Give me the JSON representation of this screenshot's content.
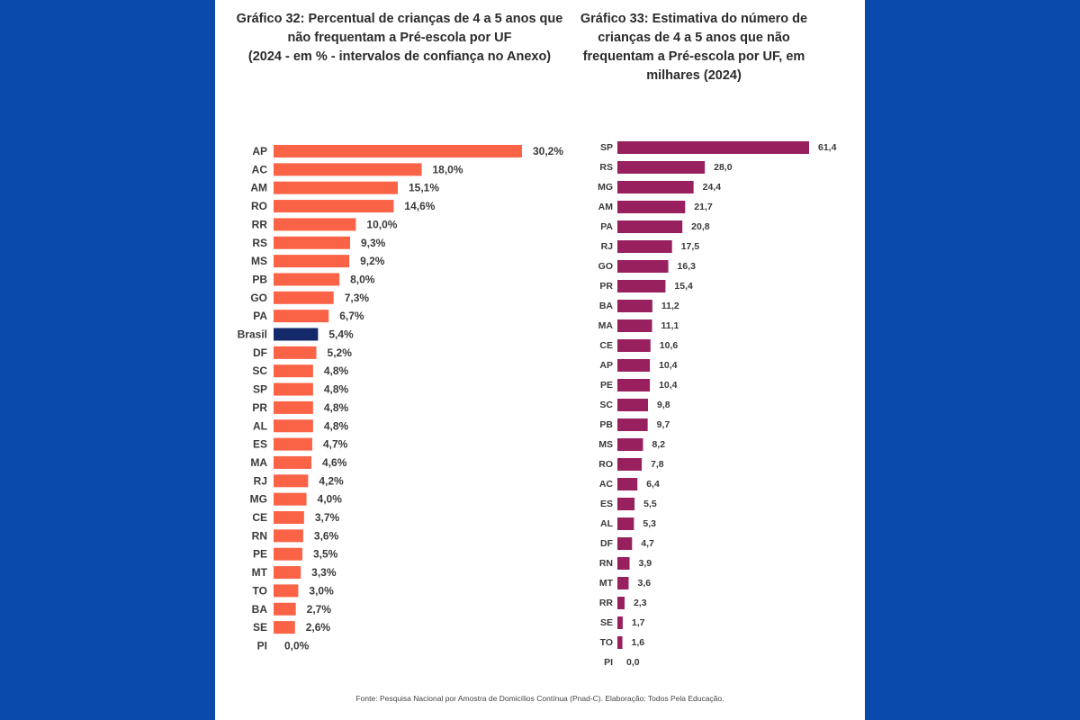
{
  "colors": {
    "background": "#0a4aad",
    "panel": "#ffffff",
    "left_bar": "#fb6347",
    "left_highlight": "#13296a",
    "right_bar": "#98205f"
  },
  "chart_data": [
    {
      "type": "bar",
      "orientation": "horizontal",
      "title_lines": [
        "Gráfico 32: Percentual de crianças de 4 a 5 anos que",
        "não frequentam a Pré-escola por UF",
        "(2024 - em %  - intervalos de confiança no Anexo)"
      ],
      "categories": [
        "AP",
        "AC",
        "AM",
        "RO",
        "RR",
        "RS",
        "MS",
        "PB",
        "GO",
        "PA",
        "Brasil",
        "DF",
        "SC",
        "SP",
        "PR",
        "AL",
        "ES",
        "MA",
        "RJ",
        "MG",
        "CE",
        "RN",
        "PE",
        "MT",
        "TO",
        "BA",
        "SE",
        "PI"
      ],
      "values": [
        30.2,
        18.0,
        15.1,
        14.6,
        10.0,
        9.3,
        9.2,
        8.0,
        7.3,
        6.7,
        5.4,
        5.2,
        4.8,
        4.8,
        4.8,
        4.8,
        4.7,
        4.6,
        4.2,
        4.0,
        3.7,
        3.6,
        3.5,
        3.3,
        3.0,
        2.7,
        2.6,
        0.0
      ],
      "value_labels": [
        "30,2%",
        "18,0%",
        "15,1%",
        "14,6%",
        "10,0%",
        "9,3%",
        "9,2%",
        "8,0%",
        "7,3%",
        "6,7%",
        "5,4%",
        "5,2%",
        "4,8%",
        "4,8%",
        "4,8%",
        "4,8%",
        "4,7%",
        "4,6%",
        "4,2%",
        "4,0%",
        "3,7%",
        "3,6%",
        "3,5%",
        "3,3%",
        "3,0%",
        "2,7%",
        "2,6%",
        "0,0%"
      ],
      "highlight": "Brasil",
      "grid": false,
      "legend": "none"
    },
    {
      "type": "bar",
      "orientation": "horizontal",
      "title_lines": [
        "Gráfico 33: Estimativa do número de",
        "crianças de 4 a 5 anos que não",
        "frequentam a Pré-escola por UF, em",
        "milhares (2024)"
      ],
      "categories": [
        "SP",
        "RS",
        "MG",
        "AM",
        "PA",
        "RJ",
        "GO",
        "PR",
        "BA",
        "MA",
        "CE",
        "AP",
        "PE",
        "SC",
        "PB",
        "MS",
        "RO",
        "AC",
        "ES",
        "AL",
        "DF",
        "RN",
        "MT",
        "RR",
        "SE",
        "TO",
        "PI"
      ],
      "values": [
        61.4,
        28.0,
        24.4,
        21.7,
        20.8,
        17.5,
        16.3,
        15.4,
        11.2,
        11.1,
        10.6,
        10.4,
        10.4,
        9.8,
        9.7,
        8.2,
        7.8,
        6.4,
        5.5,
        5.3,
        4.7,
        3.9,
        3.6,
        2.3,
        1.7,
        1.6,
        0.0
      ],
      "value_labels": [
        "61,4",
        "28,0",
        "24,4",
        "21,7",
        "20,8",
        "17,5",
        "16,3",
        "15,4",
        "11,2",
        "11,1",
        "10,6",
        "10,4",
        "10,4",
        "9,8",
        "9,7",
        "8,2",
        "7,8",
        "6,4",
        "5,5",
        "5,3",
        "4,7",
        "3,9",
        "3,6",
        "2,3",
        "1,7",
        "1,6",
        "0,0"
      ],
      "grid": false,
      "legend": "none"
    }
  ],
  "source": "Fonte: Pesquisa Nacional por Amostra de Domicílios Contínua (Pnad-C). Elaboração: Todos Pela Educação."
}
